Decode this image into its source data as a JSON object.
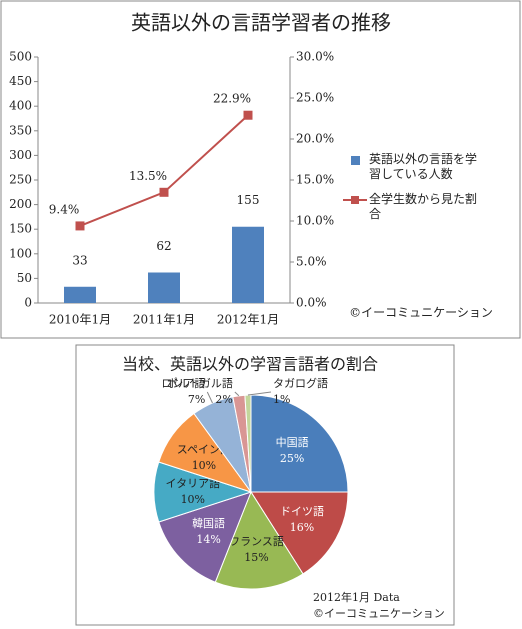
{
  "chart_data": [
    {
      "type": "bar",
      "title": "英語以外の言語学習者の推移",
      "categories": [
        "2010年1月",
        "2011年1月",
        "2012年1月"
      ],
      "series": [
        {
          "name": "英語以外の言語を学習している人数",
          "color": "#4f81bd",
          "values": [
            33,
            62,
            155
          ]
        },
        {
          "name": "全学生数から見た割合",
          "color": "#c0504d",
          "type": "line",
          "axis": "y2",
          "values": [
            9.4,
            13.5,
            22.9
          ],
          "value_labels": [
            "9.4%",
            "13.5%",
            "22.9%"
          ]
        }
      ],
      "ylim": [
        0,
        500
      ],
      "yticks": [
        0,
        50,
        100,
        150,
        200,
        250,
        300,
        350,
        400,
        450,
        500
      ],
      "y2lim": [
        0,
        30
      ],
      "y2ticks": [
        {
          "value": 0,
          "label": "0.0%"
        },
        {
          "value": 5,
          "label": "5.0%"
        },
        {
          "value": 10,
          "label": "10.0%"
        },
        {
          "value": 15,
          "label": "15.0%"
        },
        {
          "value": 20,
          "label": "20.0%"
        },
        {
          "value": 25,
          "label": "25.0%"
        },
        {
          "value": 30,
          "label": "30.0%"
        }
      ],
      "grid": false,
      "legend": "right",
      "annotations": [
        "©イーコミュニケーション"
      ]
    },
    {
      "type": "pie",
      "title": "当校、英語以外の学習言語者の割合",
      "categories": [
        "中国語",
        "ドイツ語",
        "フランス語",
        "韓国語",
        "イタリア語",
        "スペイン語",
        "ロシア語",
        "ポルトガル語",
        "タガログ語"
      ],
      "values": [
        25,
        16,
        15,
        14,
        10,
        10,
        7,
        2,
        1
      ],
      "value_labels": [
        "25%",
        "16%",
        "15%",
        "14%",
        "10%",
        "10%",
        "7%",
        "2%",
        "1%"
      ],
      "colors": [
        "#4a7ebb",
        "#be4b48",
        "#98b954",
        "#7d60a0",
        "#46aac5",
        "#f79646",
        "#95b3d7",
        "#d99694",
        "#c3d69b"
      ],
      "annotations": [
        "2012年1月 Data",
        "©イーコミュニケーション"
      ]
    }
  ]
}
